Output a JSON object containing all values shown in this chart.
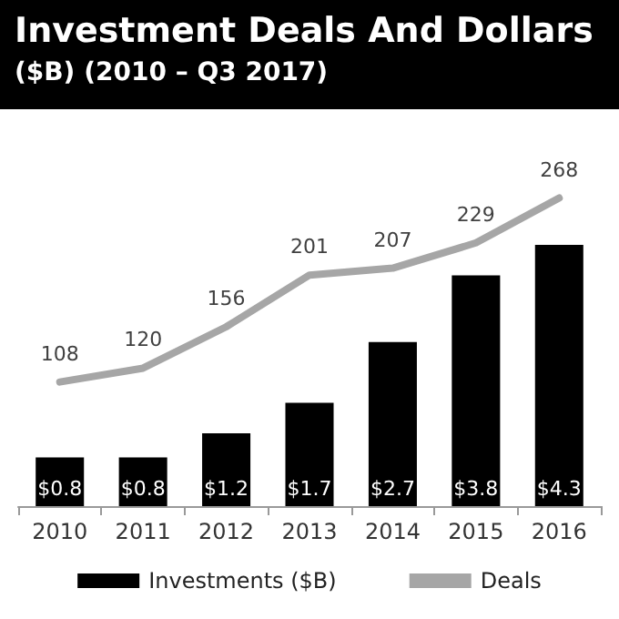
{
  "chart_data": {
    "type": "bar",
    "title": "Investment Deals And Dollars",
    "subtitle": "($B) (2010 – Q3 2017)",
    "categories": [
      "2010",
      "2011",
      "2012",
      "2013",
      "2014",
      "2015",
      "2016"
    ],
    "series": [
      {
        "name": "Investments ($B)",
        "color": "#000000",
        "values": [
          0.8,
          0.8,
          1.2,
          1.7,
          2.7,
          3.8,
          4.3
        ],
        "value_labels": [
          "$0.8",
          "$0.8",
          "$1.2",
          "$1.7",
          "$2.7",
          "$3.8",
          "$4.3"
        ]
      },
      {
        "name": "Deals",
        "type": "line",
        "axis": "y2",
        "color": "#a6a6a6",
        "values": [
          108,
          120,
          156,
          201,
          207,
          229,
          268
        ]
      }
    ],
    "data_labels": true,
    "legend": "bottom",
    "grid": false,
    "marker": "none",
    "line_style": "solid",
    "tick_labels": "x"
  }
}
